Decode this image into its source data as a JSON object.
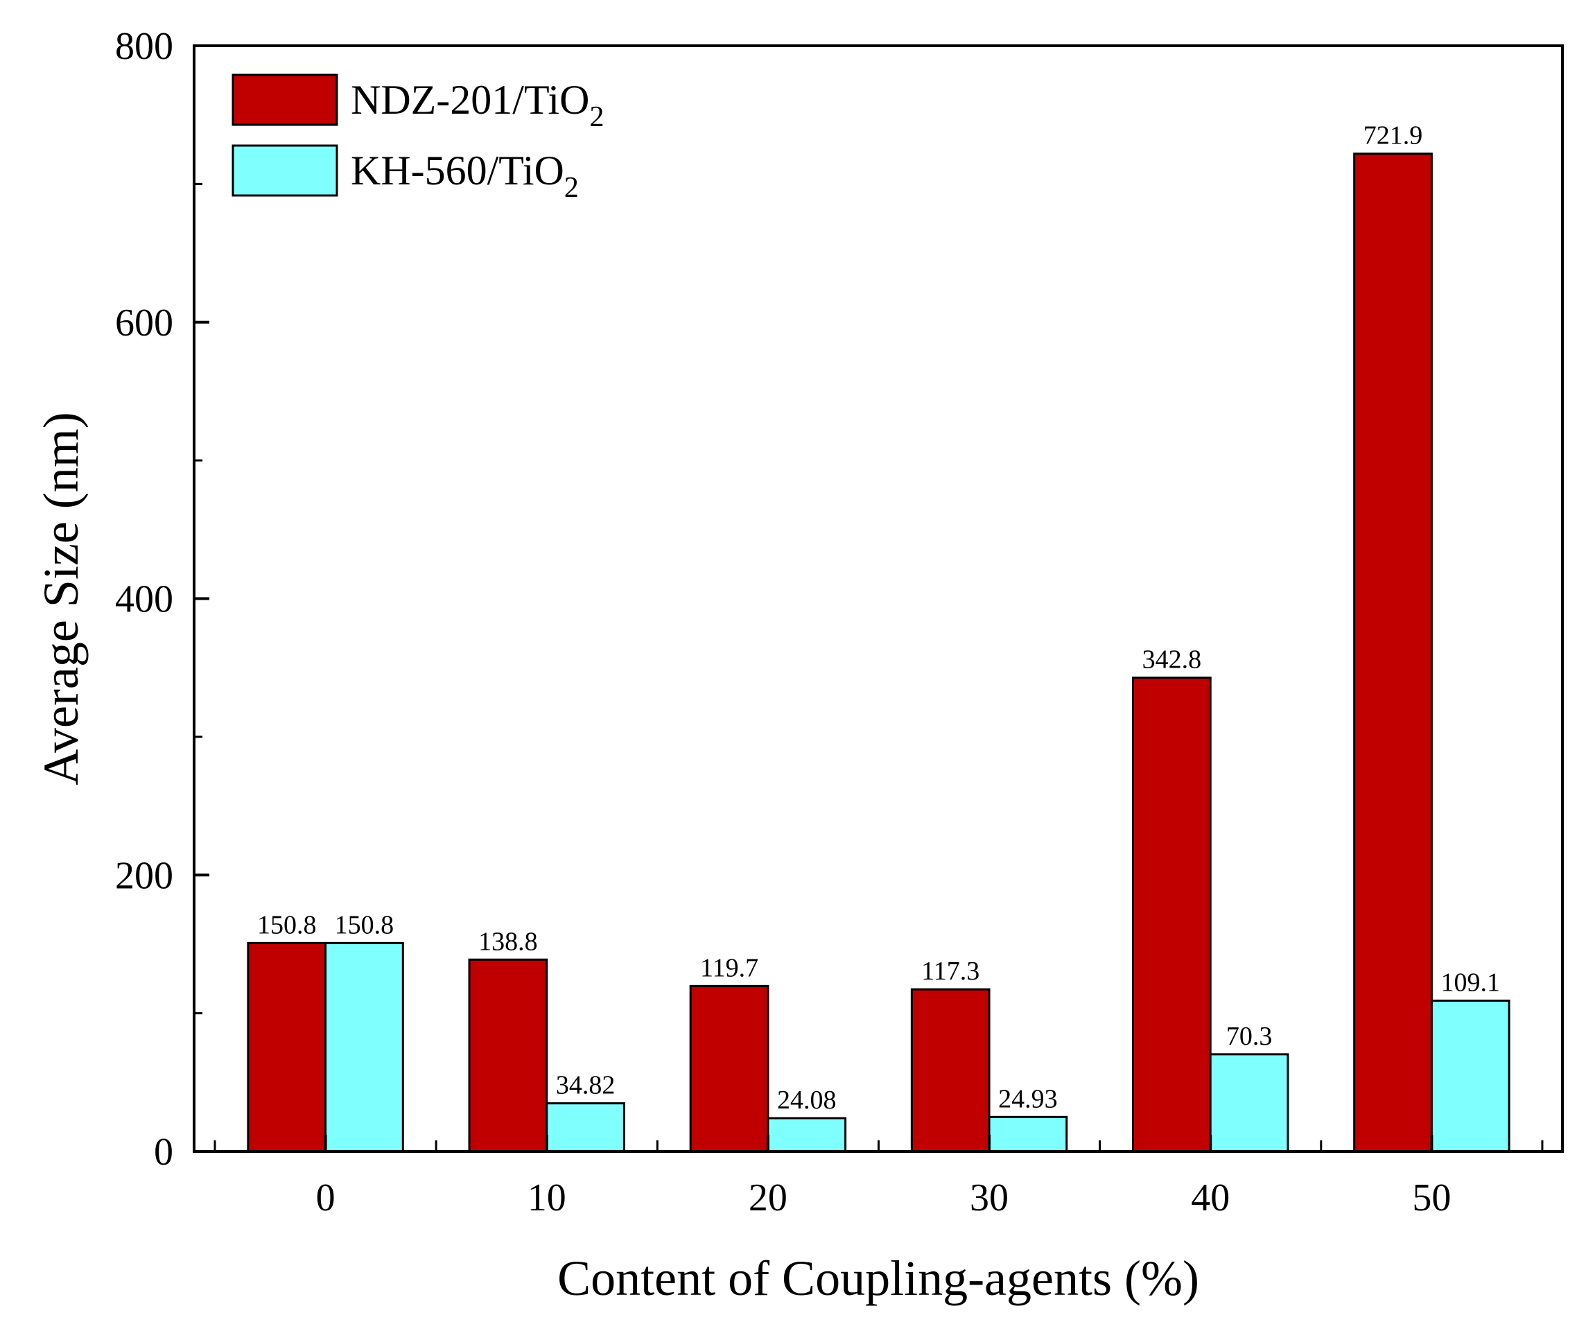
{
  "chart_data": {
    "type": "bar",
    "categories": [
      "0",
      "10",
      "20",
      "30",
      "40",
      "50"
    ],
    "series": [
      {
        "name": "NDZ-201/TiO2",
        "legend_main": "NDZ-201/TiO",
        "legend_sub": "2",
        "color": "#c00000",
        "values": [
          150.8,
          138.8,
          119.7,
          117.3,
          342.8,
          721.9
        ],
        "labels": [
          "150.8",
          "138.8",
          "119.7",
          "117.3",
          "342.8",
          "721.9"
        ]
      },
      {
        "name": "KH-560/TiO2",
        "legend_main": "KH-560/TiO",
        "legend_sub": "2",
        "color": "#80ffff",
        "values": [
          150.8,
          34.82,
          24.08,
          24.93,
          70.3,
          109.1
        ],
        "labels": [
          "150.8",
          "34.82",
          "24.08",
          "24.93",
          "70.3",
          "109.1"
        ]
      }
    ],
    "xlabel": "Content of Coupling-agents (%)",
    "ylabel": "Average Size (nm)",
    "ylim": [
      0,
      800
    ],
    "yticks": [
      0,
      200,
      400,
      600,
      800
    ],
    "yticks_minor": [
      100,
      300,
      500,
      700
    ],
    "legend_position": "top-left",
    "grid": false
  }
}
